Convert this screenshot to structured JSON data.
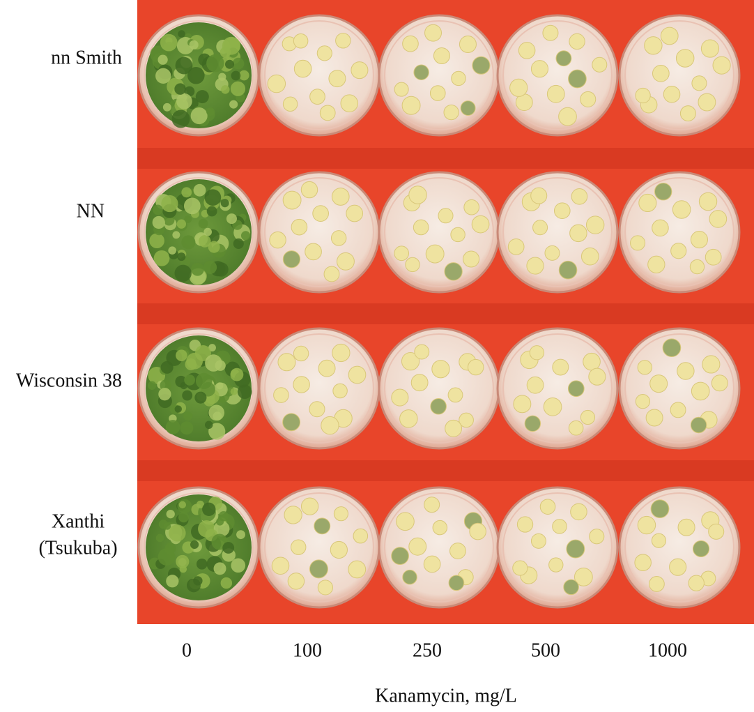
{
  "figure": {
    "row_labels": [
      [
        "nn Smith"
      ],
      [
        "NN"
      ],
      [
        "Wisconsin 38"
      ],
      [
        "Xanthi",
        "(Tsukuba)"
      ]
    ],
    "column_labels": [
      "0",
      "100",
      "250",
      "500",
      "1000"
    ],
    "axis_label": "Kanamycin, mg/L"
  }
}
